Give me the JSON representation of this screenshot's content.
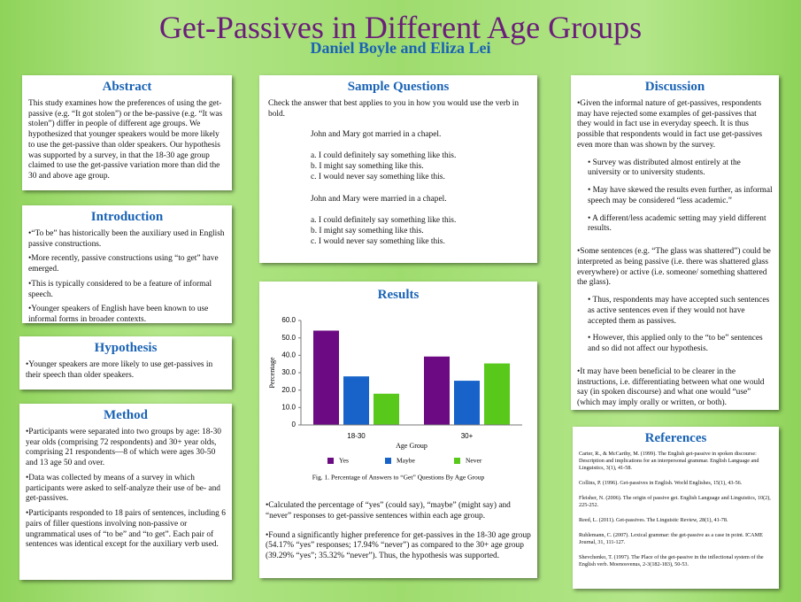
{
  "title": "Get-Passives in Different Age Groups",
  "authors": "Daniel Boyle and Eliza Lei",
  "abstract": {
    "heading": "Abstract",
    "text": "This study examines how the preferences of using the get-passive (e.g. “It got stolen”) or the be-passive (e.g. “It was stolen”) differ in people of different age groups. We hypothesized that younger speakers would be more likely to use the get-passive than older speakers. Our hypothesis was supported by a survey, in that the 18-30 age group claimed to use the get-passive variation more than did the 30 and above age group."
  },
  "introduction": {
    "heading": "Introduction",
    "items": [
      "“To be” has historically been the auxiliary used in English passive constructions.",
      "More recently, passive constructions using “to get” have emerged.",
      "This is typically considered to be a feature of informal speech.",
      "Younger speakers of English have been known to use informal forms in broader contexts."
    ]
  },
  "hypothesis": {
    "heading": "Hypothesis",
    "items": [
      "Younger speakers are more likely to use get-passives in their speech than older speakers."
    ]
  },
  "method": {
    "heading": "Method",
    "items": [
      "Participants were separated into two groups by age: 18-30 year olds (comprising 72 respondents) and 30+ year olds, comprising 21 respondents—8 of which were ages 30-50 and 13 age 50 and over.",
      "Data was collected by means of a survey in which participants were  asked to self-analyze their use of be- and get-passives.",
      "Participants responded to 18 pairs of sentences, including 6 pairs of filler questions involving non-passive or ungrammatical uses of “to be” and “to get”. Each pair of sentences was identical except for the auxiliary verb used."
    ]
  },
  "sample_questions": {
    "heading": "Sample Questions",
    "instruction": "Check the answer that best applies to you in how you would use the verb in bold.",
    "questions": [
      {
        "sentence": "John and Mary got married in a chapel.",
        "options": [
          "a. I could definitely say something like this.",
          "b. I might say something like this.",
          "c. I would never say something like this."
        ]
      },
      {
        "sentence": "John and Mary were married in a chapel.",
        "options": [
          "a. I could definitely say something like this.",
          "b. I might say something like this.",
          "c. I would never say something like this."
        ]
      }
    ]
  },
  "results": {
    "heading": "Results",
    "caption": "Fig. 1. Percentage of Answers to “Get” Questions By Age Group",
    "items": [
      "Calculated the percentage of “yes” (could say), “maybe” (might say) and “never” responses to get-passive sentences within each age group.",
      "Found a significantly higher preference for get-passives in the 18-30 age group (54.17% “yes” responses; 17.94% “never”) as compared to the 30+ age group (39.29% “yes”; 35.32% “never”). Thus, the hypothesis was supported."
    ]
  },
  "chart_data": {
    "type": "bar",
    "x_label": "Age Group",
    "y_label": "Percentage",
    "categories": [
      "18-30",
      "30+"
    ],
    "series": [
      {
        "name": "Yes",
        "color": "#6b0a82",
        "values": [
          54.17,
          39.29
        ]
      },
      {
        "name": "Maybe",
        "color": "#1763c9",
        "values": [
          27.89,
          25.39
        ]
      },
      {
        "name": "Never",
        "color": "#58c91b",
        "values": [
          17.94,
          35.32
        ]
      }
    ],
    "ylim": [
      0,
      60
    ],
    "yticks": [
      0,
      {
        "value": 10,
        "label": "10.0"
      },
      {
        "value": 20,
        "label": "20.0"
      },
      {
        "value": 30,
        "label": "30.0"
      },
      {
        "value": 40,
        "label": "40.0"
      },
      {
        "value": 50,
        "label": "50.0"
      },
      {
        "value": 60,
        "label": "60.0"
      }
    ]
  },
  "discussion": {
    "heading": "Discussion",
    "points": [
      {
        "text": "Given the informal nature of get-passives, respondents may have rejected some examples of get-passives that they would in fact use in everyday speech. It is thus possible that respondents would in fact use get-passives even more than was shown by the survey.",
        "subpoints": [
          "Survey was distributed almost entirely at the university or to university students.",
          "May have skewed the results even further, as informal speech may be considered “less academic.”",
          "A different/less academic setting may yield different results."
        ]
      },
      {
        "text": "Some sentences (e.g. “The glass was shattered”) could be interpreted as being passive (i.e. there was shattered glass everywhere) or active (i.e. someone/ something shattered the glass).",
        "subpoints": [
          "Thus, respondents may have accepted such sentences as active sentences even if they would not have accepted them as passives.",
          "However, this applied only to the “to be” sentences and so did not affect our hypothesis."
        ]
      },
      {
        "text": "It may have been beneficial to be clearer in the instructions, i.e. differentiating between what one would say (in spoken discourse) and what one would “use” (which may imply orally or written, or both)."
      }
    ]
  },
  "references": {
    "heading": "References",
    "items": [
      "Carter, R., & McCarthy, M. (1999). The English get-passive in spoken discourse: Description and implications for an interpersonal grammar. English Language and Linguistics, 3(1), 41-58.",
      "Collins, P. (1996). Get-passives in English. World Englishes, 15(1), 43-56.",
      "Fleisher, N. (2006). The origin of passive get. English Language and Linguistics, 10(2), 225-252.",
      "Reed, L. (2011). Get-passives. The Linguistic Review, 28(1), 41-78.",
      "Ruhlemann, C. (2007). Lexical grammar: the get-passive as a case in point. ICAME Journal, 31, 111-127.",
      "Shevchenko, T. (1997). The Place of the get-passive in the inflectional system of the English verb. Moenosvenus, 2-3(182-183), 50-53."
    ]
  }
}
